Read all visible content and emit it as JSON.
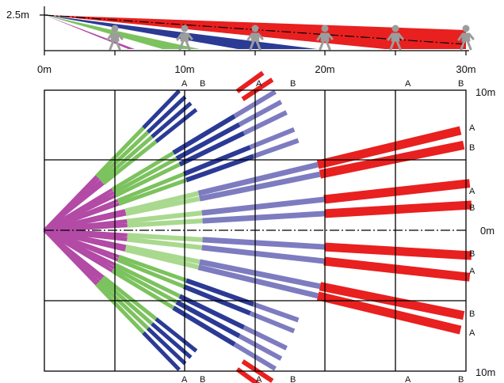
{
  "side_view": {
    "height_label": "2.5m",
    "distance_labels": [
      "0m",
      "10m",
      "20m",
      "30m"
    ]
  },
  "top_view": {
    "range_label_top": "10m",
    "range_label_mid": "0m",
    "range_label_bottom": "10m",
    "zone_letters": [
      "A",
      "B"
    ],
    "top_letters": [
      "A",
      "B",
      "A",
      "B",
      "A",
      "B"
    ],
    "bottom_letters": [
      "A",
      "B",
      "A",
      "B",
      "A",
      "B"
    ],
    "right_letters": [
      "A",
      "B",
      "A",
      "B",
      "B",
      "A",
      "B",
      "A"
    ]
  },
  "colors": {
    "magenta": "#b24aa6",
    "green": "#7cc25e",
    "light_green": "#a9d98e",
    "blue": "#2b3a95",
    "light_blue": "#7d7cc0",
    "red": "#e8201f",
    "grid": "#000000",
    "person": "#9c9c9c"
  }
}
